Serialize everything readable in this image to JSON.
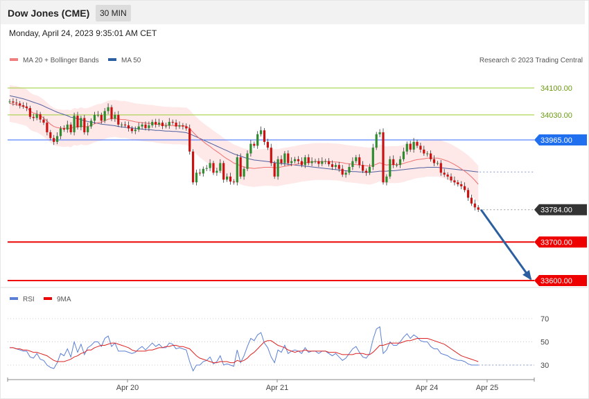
{
  "header": {
    "title": "Dow Jones (CME)",
    "timeframe": "30 MIN"
  },
  "datetime": "Monday, April 24, 2023 9:35:01 AM CET",
  "legend": {
    "ma20": "MA 20 + Bollinger Bands",
    "ma50": "MA 50",
    "rsi": "RSI",
    "ma9": "9MA"
  },
  "copyright": "Research © 2023 Trading Central",
  "colors": {
    "bullish": "#2e8b2e",
    "bearish": "#cc1111",
    "band": "#fde0e0",
    "ma20": "#f07070",
    "ma50": "#5060a0",
    "resistance": "#9acd32",
    "pivot": "#3366ff",
    "support": "#ee0000",
    "arrow": "#2b5fa0",
    "rsi": "#5b7fd6",
    "rsi_ma": "#dd2222"
  },
  "chart_data": [
    {
      "type": "candlestick",
      "name": "price",
      "x_labels": [
        "Apr 20",
        "Apr 21",
        "Apr 24",
        "Apr 25"
      ],
      "levels": [
        {
          "value": 34100.0,
          "label": "34100.00",
          "kind": "resistance"
        },
        {
          "value": 34030.0,
          "label": "34030.00",
          "kind": "resistance"
        },
        {
          "value": 33965.0,
          "label": "33965.00",
          "kind": "pivot"
        },
        {
          "value": 33784.0,
          "label": "33784.00",
          "kind": "last"
        },
        {
          "value": 33700.0,
          "label": "33700.00",
          "kind": "support"
        },
        {
          "value": 33600.0,
          "label": "33600.00",
          "kind": "support"
        }
      ],
      "ylim": [
        33600,
        34100
      ],
      "forecast_target": 33600.0,
      "close": [
        34065,
        34062,
        34060,
        34055,
        34052,
        34048,
        34025,
        34022,
        34032,
        34018,
        34010,
        33985,
        33970,
        33960,
        33975,
        33995,
        33992,
        34005,
        33985,
        34028,
        33998,
        34022,
        33985,
        34000,
        34015,
        34030,
        34030,
        34015,
        34040,
        34050,
        34020,
        34030,
        34005,
        34005,
        34003,
        33995,
        33988,
        33992,
        34000,
        34005,
        33996,
        34003,
        34012,
        34005,
        34010,
        34001,
        34002,
        34012,
        34010,
        34000,
        34003,
        34000,
        33995,
        33935,
        33855,
        33880,
        33878,
        33890,
        33892,
        33905,
        33880,
        33885,
        33905,
        33862,
        33870,
        33857,
        33855,
        33920,
        33870,
        33890,
        33930,
        33955,
        33950,
        33980,
        33990,
        33960,
        33945,
        33905,
        33870,
        33915,
        33905,
        33930,
        33905,
        33910,
        33915,
        33910,
        33900,
        33920,
        33905,
        33910,
        33910,
        33903,
        33910,
        33910,
        33902,
        33895,
        33900,
        33890,
        33875,
        33880,
        33895,
        33910,
        33920,
        33900,
        33885,
        33880,
        33895,
        33945,
        33980,
        33985,
        33855,
        33870,
        33915,
        33900,
        33900,
        33915,
        33935,
        33955,
        33940,
        33960,
        33950,
        33940,
        33930,
        33930,
        33915,
        33905,
        33905,
        33880,
        33875,
        33870,
        33860,
        33855,
        33850,
        33845,
        33835,
        33815,
        33800,
        33790,
        33784
      ],
      "ma20": [
        34060,
        34058,
        34057,
        34054,
        34052,
        34049,
        34040,
        34035,
        34033,
        34028,
        34022,
        34014,
        34006,
        34000,
        33997,
        33996,
        33995,
        33996,
        33994,
        34000,
        33998,
        34002,
        33999,
        34000,
        34003,
        34007,
        34010,
        34011,
        34015,
        34019,
        34020,
        34021,
        34019,
        34018,
        34018,
        34016,
        34014,
        34012,
        34011,
        34010,
        34009,
        34008,
        34008,
        34006,
        34005,
        34004,
        34003,
        34003,
        34002,
        34002,
        34002,
        34001,
        34001,
        33995,
        33985,
        33976,
        33968,
        33961,
        33954,
        33948,
        33941,
        33935,
        33929,
        33922,
        33916,
        33911,
        33905,
        33902,
        33898,
        33895,
        33893,
        33892,
        33891,
        33892,
        33893,
        33894,
        33894,
        33894,
        33893,
        33893,
        33895,
        33897,
        33898,
        33900,
        33901,
        33903,
        33905,
        33906,
        33907,
        33908,
        33909,
        33909,
        33909,
        33909,
        33909,
        33908,
        33908,
        33907,
        33906,
        33904,
        33903,
        33902,
        33901,
        33900,
        33899,
        33898,
        33897,
        33899,
        33902,
        33906,
        33902,
        33900,
        33901,
        33901,
        33901,
        33902,
        33904,
        33907,
        33909,
        33912,
        33914,
        33915,
        33916,
        33918,
        33918,
        33918,
        33918,
        33916,
        33913,
        33910,
        33906,
        33901,
        33896,
        33890,
        33884,
        33877,
        33869,
        33860,
        33850
      ],
      "ma50": [
        34080,
        34078,
        34076,
        34074,
        34072,
        34069,
        34066,
        34063,
        34060,
        34057,
        34053,
        34049,
        34045,
        34041,
        34037,
        34034,
        34031,
        34028,
        34024,
        34023,
        34020,
        34018,
        34015,
        34013,
        34011,
        34010,
        34008,
        34006,
        34005,
        34004,
        34003,
        34002,
        34000,
        33999,
        33998,
        33997,
        33996,
        33995,
        33994,
        33993,
        33992,
        33992,
        33991,
        33990,
        33990,
        33989,
        33988,
        33988,
        33987,
        33987,
        33986,
        33985,
        33984,
        33981,
        33977,
        33973,
        33969,
        33965,
        33961,
        33957,
        33953,
        33949,
        33945,
        33941,
        33937,
        33933,
        33929,
        33926,
        33923,
        33920,
        33917,
        33915,
        33913,
        33912,
        33911,
        33910,
        33909,
        33908,
        33906,
        33905,
        33904,
        33903,
        33902,
        33901,
        33900,
        33899,
        33898,
        33897,
        33896,
        33895,
        33894,
        33893,
        33892,
        33891,
        33890,
        33889,
        33888,
        33887,
        33886,
        33885,
        33884,
        33883,
        33883,
        33882,
        33882,
        33881,
        33881,
        33882,
        33883,
        33884,
        33884,
        33884,
        33885,
        33885,
        33886,
        33887,
        33888,
        33889,
        33890,
        33891,
        33892,
        33893,
        33893,
        33894,
        33894,
        33894,
        33894,
        33893,
        33892,
        33891,
        33890,
        33889,
        33888,
        33887,
        33886,
        33885,
        33884,
        33883,
        33882
      ]
    },
    {
      "type": "line",
      "name": "rsi",
      "ylim": [
        20,
        80
      ],
      "y_ticks": [
        70,
        50,
        30
      ],
      "rsi": [
        45,
        45,
        44,
        43,
        42,
        42,
        37,
        36,
        40,
        35,
        34,
        30,
        28,
        27,
        32,
        40,
        38,
        44,
        37,
        50,
        41,
        48,
        39,
        45,
        47,
        50,
        50,
        46,
        53,
        55,
        46,
        49,
        42,
        42,
        42,
        41,
        40,
        41,
        44,
        46,
        43,
        46,
        49,
        46,
        48,
        45,
        45,
        49,
        48,
        44,
        45,
        44,
        43,
        33,
        25,
        30,
        30,
        33,
        34,
        37,
        31,
        33,
        38,
        30,
        31,
        30,
        29,
        43,
        32,
        38,
        46,
        53,
        51,
        56,
        58,
        49,
        45,
        37,
        32,
        43,
        41,
        47,
        40,
        42,
        43,
        42,
        40,
        45,
        41,
        42,
        42,
        40,
        42,
        42,
        40,
        38,
        40,
        37,
        34,
        36,
        40,
        44,
        46,
        41,
        37,
        36,
        40,
        52,
        61,
        63,
        40,
        43,
        50,
        47,
        47,
        50,
        54,
        57,
        53,
        56,
        54,
        51,
        50,
        50,
        46,
        44,
        44,
        40,
        39,
        38,
        36,
        35,
        34,
        34,
        33,
        31,
        30,
        30,
        30
      ],
      "ma9": [
        45,
        45,
        44,
        44,
        43,
        43,
        42,
        41,
        41,
        40,
        39,
        38,
        36,
        34,
        33,
        33,
        33,
        34,
        35,
        37,
        38,
        40,
        41,
        43,
        43,
        45,
        46,
        47,
        47,
        48,
        49,
        49,
        48,
        47,
        46,
        45,
        43,
        42,
        42,
        42,
        42,
        43,
        43,
        44,
        45,
        45,
        46,
        46,
        47,
        47,
        46,
        46,
        45,
        44,
        41,
        38,
        36,
        35,
        34,
        33,
        32,
        32,
        33,
        33,
        33,
        32,
        32,
        34,
        33,
        34,
        36,
        39,
        41,
        44,
        47,
        50,
        51,
        51,
        49,
        47,
        46,
        45,
        43,
        42,
        41,
        42,
        42,
        43,
        42,
        42,
        42,
        42,
        42,
        42,
        41,
        41,
        41,
        40,
        39,
        39,
        39,
        39,
        40,
        40,
        40,
        39,
        39,
        41,
        44,
        47,
        47,
        48,
        49,
        49,
        49,
        49,
        50,
        51,
        51,
        52,
        53,
        53,
        53,
        53,
        52,
        51,
        50,
        49,
        48,
        46,
        44,
        42,
        40,
        38,
        37,
        36,
        35,
        34,
        33
      ]
    }
  ]
}
